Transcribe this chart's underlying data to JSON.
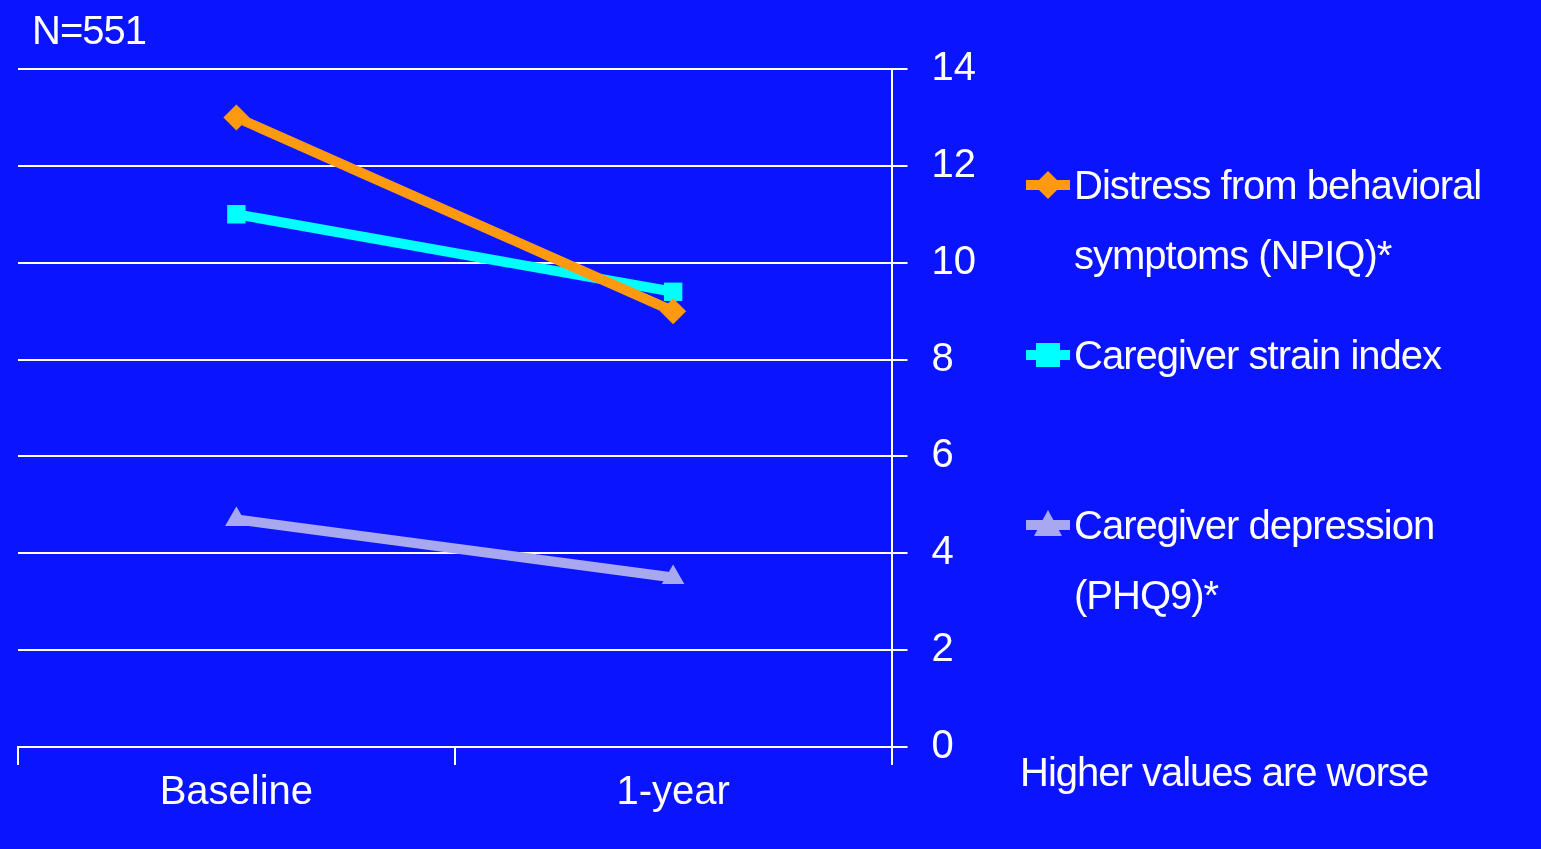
{
  "chart_data": {
    "type": "line",
    "categories": [
      "Baseline",
      "1-year"
    ],
    "series": [
      {
        "name": "Distress from behavioral symptoms (NPIQ)*",
        "color": "#ff9a10",
        "marker": "diamond",
        "values": [
          13.0,
          9.0
        ]
      },
      {
        "name": "Caregiver strain index",
        "color": "#00ffff",
        "marker": "square",
        "values": [
          11.0,
          9.4
        ]
      },
      {
        "name": "Caregiver depression (PHQ9)*",
        "color": "#a8a8f0",
        "marker": "triangle",
        "values": [
          4.7,
          3.5
        ]
      }
    ],
    "ylim": [
      0,
      14
    ],
    "yticks": [
      0,
      2,
      4,
      6,
      8,
      10,
      12,
      14
    ],
    "grid": "y",
    "legend": "right",
    "line_style": "solid",
    "annotations": [
      "N=551",
      "Higher values are worse"
    ]
  }
}
